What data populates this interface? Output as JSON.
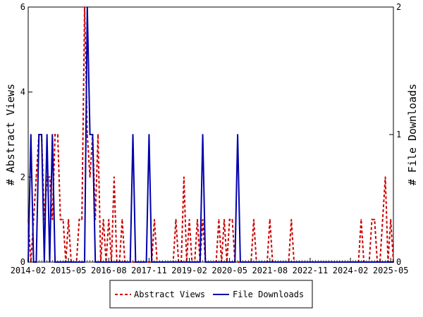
{
  "chart_data": {
    "type": "line",
    "x_axis": {
      "tick_labels": [
        "2014-02",
        "2015-05",
        "2016-08",
        "2017-11",
        "2019-02",
        "2020-05",
        "2021-08",
        "2022-11",
        "2024-02",
        "2025-05"
      ],
      "tick_months": [
        0,
        15,
        30,
        45,
        60,
        75,
        90,
        105,
        120,
        135
      ],
      "range_months": [
        0,
        136
      ]
    },
    "y_left": {
      "label": "# Abstract Views",
      "ylim": [
        0,
        6
      ],
      "ticks": [
        "0",
        "2",
        "4",
        "6"
      ]
    },
    "y_right": {
      "label": "# File Downloads",
      "ylim": [
        0,
        2
      ],
      "ticks": [
        "0",
        "1",
        "2"
      ]
    },
    "grid": false,
    "legend_position": "bottom-center",
    "series": [
      {
        "name": "Abstract Views",
        "axis": "left",
        "color": "#cc0000",
        "style": "dashed",
        "points": [
          [
            0,
            1
          ],
          [
            1,
            0
          ],
          [
            2,
            1
          ],
          [
            3,
            2
          ],
          [
            4,
            3
          ],
          [
            5,
            3
          ],
          [
            6,
            1
          ],
          [
            7,
            2
          ],
          [
            8,
            2
          ],
          [
            9,
            1
          ],
          [
            10,
            3
          ],
          [
            11,
            3
          ],
          [
            12,
            1
          ],
          [
            13,
            1
          ],
          [
            14,
            0
          ],
          [
            15,
            1
          ],
          [
            16,
            0
          ],
          [
            17,
            0
          ],
          [
            18,
            0
          ],
          [
            19,
            1
          ],
          [
            20,
            1
          ],
          [
            21,
            6
          ],
          [
            22,
            3
          ],
          [
            23,
            2
          ],
          [
            24,
            3
          ],
          [
            25,
            1
          ],
          [
            26,
            3
          ],
          [
            27,
            0
          ],
          [
            28,
            1
          ],
          [
            29,
            0
          ],
          [
            30,
            1
          ],
          [
            31,
            0
          ],
          [
            32,
            2
          ],
          [
            33,
            0
          ],
          [
            34,
            0
          ],
          [
            35,
            1
          ],
          [
            36,
            0
          ],
          [
            37,
            0
          ],
          [
            38,
            0
          ],
          [
            39,
            0
          ],
          [
            40,
            0
          ],
          [
            41,
            0
          ],
          [
            42,
            0
          ],
          [
            43,
            0
          ],
          [
            44,
            0
          ],
          [
            45,
            0
          ],
          [
            46,
            0
          ],
          [
            47,
            1
          ],
          [
            48,
            0
          ],
          [
            49,
            0
          ],
          [
            50,
            0
          ],
          [
            51,
            0
          ],
          [
            52,
            0
          ],
          [
            53,
            0
          ],
          [
            54,
            0
          ],
          [
            55,
            1
          ],
          [
            56,
            0
          ],
          [
            57,
            0
          ],
          [
            58,
            2
          ],
          [
            59,
            0
          ],
          [
            60,
            1
          ],
          [
            61,
            0
          ],
          [
            62,
            0
          ],
          [
            63,
            1
          ],
          [
            64,
            0
          ],
          [
            65,
            1
          ],
          [
            66,
            0
          ],
          [
            67,
            0
          ],
          [
            68,
            0
          ],
          [
            69,
            0
          ],
          [
            70,
            0
          ],
          [
            71,
            1
          ],
          [
            72,
            0
          ],
          [
            73,
            1
          ],
          [
            74,
            0
          ],
          [
            75,
            1
          ],
          [
            76,
            1
          ],
          [
            77,
            0
          ],
          [
            78,
            0
          ],
          [
            79,
            0
          ],
          [
            80,
            0
          ],
          [
            81,
            0
          ],
          [
            82,
            0
          ],
          [
            83,
            0
          ],
          [
            84,
            1
          ],
          [
            85,
            0
          ],
          [
            86,
            0
          ],
          [
            87,
            0
          ],
          [
            88,
            0
          ],
          [
            89,
            0
          ],
          [
            90,
            1
          ],
          [
            91,
            0
          ],
          [
            92,
            0
          ],
          [
            93,
            0
          ],
          [
            94,
            0
          ],
          [
            95,
            0
          ],
          [
            96,
            0
          ],
          [
            97,
            0
          ],
          [
            98,
            1
          ],
          [
            99,
            0
          ],
          [
            100,
            0
          ],
          [
            101,
            0
          ],
          [
            102,
            0
          ],
          [
            103,
            0
          ],
          [
            104,
            0
          ],
          [
            105,
            0
          ],
          [
            106,
            0
          ],
          [
            107,
            0
          ],
          [
            108,
            0
          ],
          [
            109,
            0
          ],
          [
            110,
            0
          ],
          [
            111,
            0
          ],
          [
            112,
            0
          ],
          [
            113,
            0
          ],
          [
            114,
            0
          ],
          [
            115,
            0
          ],
          [
            116,
            0
          ],
          [
            117,
            0
          ],
          [
            118,
            0
          ],
          [
            119,
            0
          ],
          [
            120,
            0
          ],
          [
            121,
            0
          ],
          [
            122,
            0
          ],
          [
            123,
            0
          ],
          [
            124,
            1
          ],
          [
            125,
            0
          ],
          [
            126,
            0
          ],
          [
            127,
            0
          ],
          [
            128,
            1
          ],
          [
            129,
            1
          ],
          [
            130,
            0
          ],
          [
            131,
            0
          ],
          [
            132,
            1
          ],
          [
            133,
            2
          ],
          [
            134,
            0
          ],
          [
            135,
            1
          ],
          [
            136,
            0
          ]
        ]
      },
      {
        "name": "File Downloads",
        "axis": "right",
        "color": "#0000aa",
        "style": "solid",
        "points": [
          [
            0,
            0
          ],
          [
            1,
            1
          ],
          [
            2,
            0
          ],
          [
            3,
            0
          ],
          [
            4,
            1
          ],
          [
            5,
            1
          ],
          [
            6,
            0
          ],
          [
            7,
            1
          ],
          [
            8,
            0
          ],
          [
            9,
            1
          ],
          [
            10,
            0
          ],
          [
            11,
            0
          ],
          [
            12,
            0
          ],
          [
            13,
            0
          ],
          [
            14,
            0
          ],
          [
            15,
            0
          ],
          [
            16,
            0
          ],
          [
            17,
            0
          ],
          [
            18,
            0
          ],
          [
            19,
            0
          ],
          [
            20,
            0
          ],
          [
            21,
            0
          ],
          [
            22,
            2
          ],
          [
            23,
            1
          ],
          [
            24,
            1
          ],
          [
            25,
            0
          ],
          [
            26,
            0
          ],
          [
            27,
            0
          ],
          [
            28,
            0
          ],
          [
            29,
            0
          ],
          [
            30,
            0
          ],
          [
            31,
            0
          ],
          [
            32,
            0
          ],
          [
            33,
            0
          ],
          [
            34,
            0
          ],
          [
            35,
            0
          ],
          [
            36,
            0
          ],
          [
            37,
            0
          ],
          [
            38,
            0
          ],
          [
            39,
            1
          ],
          [
            40,
            0
          ],
          [
            41,
            0
          ],
          [
            42,
            0
          ],
          [
            43,
            0
          ],
          [
            44,
            0
          ],
          [
            45,
            1
          ],
          [
            46,
            0
          ],
          [
            47,
            0
          ],
          [
            48,
            0
          ],
          [
            49,
            0
          ],
          [
            50,
            0
          ],
          [
            51,
            0
          ],
          [
            52,
            0
          ],
          [
            53,
            0
          ],
          [
            54,
            0
          ],
          [
            55,
            0
          ],
          [
            56,
            0
          ],
          [
            57,
            0
          ],
          [
            58,
            0
          ],
          [
            59,
            0
          ],
          [
            60,
            0
          ],
          [
            61,
            0
          ],
          [
            62,
            0
          ],
          [
            63,
            0
          ],
          [
            64,
            0
          ],
          [
            65,
            1
          ],
          [
            66,
            0
          ],
          [
            67,
            0
          ],
          [
            68,
            0
          ],
          [
            69,
            0
          ],
          [
            70,
            0
          ],
          [
            71,
            0
          ],
          [
            72,
            0
          ],
          [
            73,
            0
          ],
          [
            74,
            0
          ],
          [
            75,
            0
          ],
          [
            76,
            0
          ],
          [
            77,
            0
          ],
          [
            78,
            1
          ],
          [
            79,
            0
          ],
          [
            80,
            0
          ],
          [
            81,
            0
          ],
          [
            82,
            0
          ],
          [
            83,
            0
          ],
          [
            84,
            0
          ],
          [
            85,
            0
          ],
          [
            86,
            0
          ],
          [
            87,
            0
          ],
          [
            88,
            0
          ],
          [
            89,
            0
          ],
          [
            90,
            0
          ],
          [
            91,
            0
          ],
          [
            92,
            0
          ],
          [
            93,
            0
          ],
          [
            94,
            0
          ],
          [
            95,
            0
          ],
          [
            96,
            0
          ],
          [
            97,
            0
          ],
          [
            98,
            0
          ],
          [
            99,
            0
          ],
          [
            100,
            0
          ],
          [
            101,
            0
          ],
          [
            102,
            0
          ],
          [
            103,
            0
          ],
          [
            104,
            0
          ],
          [
            105,
            0
          ],
          [
            106,
            0
          ],
          [
            107,
            0
          ],
          [
            108,
            0
          ],
          [
            109,
            0
          ],
          [
            110,
            0
          ],
          [
            111,
            0
          ],
          [
            112,
            0
          ],
          [
            113,
            0
          ],
          [
            114,
            0
          ],
          [
            115,
            0
          ],
          [
            116,
            0
          ],
          [
            117,
            0
          ],
          [
            118,
            0
          ],
          [
            119,
            0
          ],
          [
            120,
            0
          ],
          [
            121,
            0
          ],
          [
            122,
            0
          ],
          [
            123,
            0
          ],
          [
            124,
            0
          ],
          [
            125,
            0
          ],
          [
            126,
            0
          ],
          [
            127,
            0
          ],
          [
            128,
            0
          ],
          [
            129,
            0
          ],
          [
            130,
            0
          ],
          [
            131,
            0
          ],
          [
            132,
            0
          ],
          [
            133,
            0
          ],
          [
            134,
            0
          ],
          [
            135,
            0
          ],
          [
            136,
            0
          ]
        ]
      }
    ]
  }
}
